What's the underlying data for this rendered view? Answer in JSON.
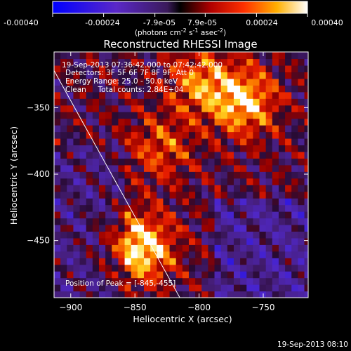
{
  "colorbar": {
    "ticks": [
      "-0.00040",
      "-0.00024",
      "-7.9e-05",
      "7.9e-05",
      "0.00024",
      "0.00040"
    ],
    "tick_values": [
      -0.0004,
      -0.00024,
      -7.9e-05,
      7.9e-05,
      0.00024,
      0.0004
    ],
    "range": [
      -0.0004,
      0.0004
    ],
    "unit_prefix": "(photons cm",
    "unit_sup1": "-2",
    "unit_mid": " s",
    "unit_sup2": "-1",
    "unit_mid2": " asec",
    "unit_sup3": "-2",
    "unit_suffix": ")"
  },
  "chart_data": {
    "type": "heatmap",
    "title": "Reconstructed RHESSI Image",
    "xlabel": "Heliocentric X (arcsec)",
    "ylabel": "Heliocentric Y (arcsec)",
    "xlim": [
      -913,
      -715
    ],
    "ylim": [
      -493,
      -308
    ],
    "xticks": [
      -900,
      -850,
      -800,
      -750
    ],
    "yticks": [
      -350,
      -400,
      -450
    ],
    "xtick_labels": [
      "−900",
      "−850",
      "−800",
      "−750"
    ],
    "ytick_labels": [
      "−350",
      "−400",
      "−450"
    ],
    "sources": [
      {
        "x": -845,
        "y": -455,
        "value": 0.0004
      },
      {
        "x": -765,
        "y": -345,
        "value": 0.00035
      },
      {
        "x": -800,
        "y": -330,
        "value": 0.00025
      },
      {
        "x": -830,
        "y": -380,
        "value": 0.0002
      }
    ],
    "limb_line": [
      [
        -913,
        -322
      ],
      [
        -815,
        -493
      ]
    ],
    "annotations": [
      "19-Sep-2013 07:36:42.000 to 07:42:42.000",
      "Detectors: 3F 5F 6F 7F 8F 9F, Att 0",
      "Energy Range: 25.0 - 50.0 keV",
      "Clean     Total counts: 2.84E+04"
    ],
    "peak_label": "Position of Peak = [-845,-455]",
    "peak": [
      -845,
      -455
    ]
  },
  "footer": {
    "timestamp": "19-Sep-2013 08:10"
  }
}
